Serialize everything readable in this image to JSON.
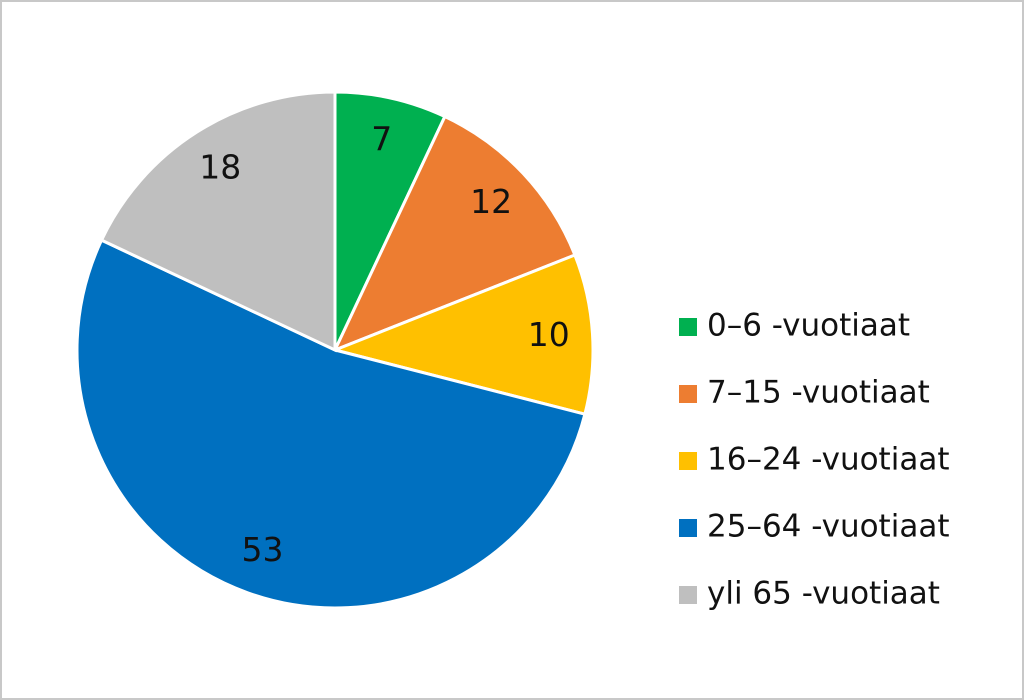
{
  "chart_data": {
    "type": "pie",
    "categories": [
      "0–6 -vuotiaat",
      "7–15 -vuotiaat",
      "16–24 -vuotiaat",
      "25–64 -vuotiaat",
      "yli 65 -vuotiaat"
    ],
    "values": [
      7,
      12,
      10,
      53,
      18
    ],
    "colors": [
      "#00b050",
      "#ed7d31",
      "#ffc000",
      "#0070c0",
      "#bfbfbf"
    ],
    "legend": "right"
  }
}
